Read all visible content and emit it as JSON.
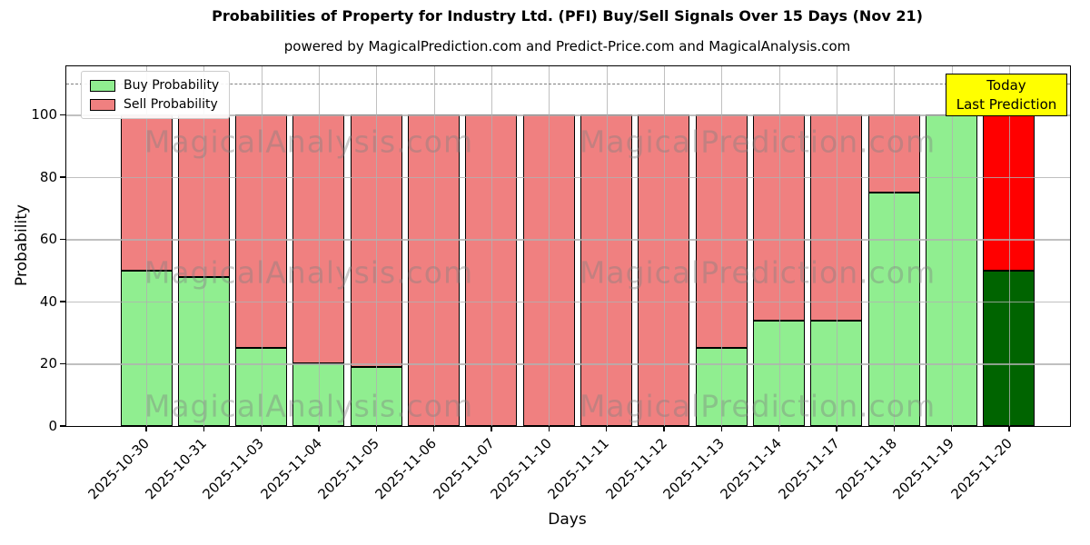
{
  "chart_data": {
    "type": "bar",
    "stacked": true,
    "title": "Probabilities of Property for Industry Ltd. (PFI) Buy/Sell Signals Over 15 Days (Nov 21)",
    "subtitle": "powered by MagicalPrediction.com and Predict-Price.com and MagicalAnalysis.com",
    "xlabel": "Days",
    "ylabel": "Probability",
    "ylim": [
      0,
      115.6
    ],
    "yticks": [
      0,
      20,
      40,
      60,
      80,
      100
    ],
    "grid": true,
    "legend_position": "upper left",
    "categories": [
      "2025-10-30",
      "2025-10-31",
      "2025-11-03",
      "2025-11-04",
      "2025-11-05",
      "2025-11-06",
      "2025-11-07",
      "2025-11-10",
      "2025-11-11",
      "2025-11-12",
      "2025-11-13",
      "2025-11-14",
      "2025-11-17",
      "2025-11-18",
      "2025-11-19",
      "2025-11-20"
    ],
    "series": [
      {
        "name": "Buy Probability",
        "color": "#90EE90",
        "values": [
          50,
          48,
          25,
          20,
          19,
          0,
          0,
          0,
          0,
          0,
          25,
          34,
          34,
          75,
          100,
          50
        ]
      },
      {
        "name": "Sell Probability",
        "color": "#F08080",
        "values": [
          50,
          52,
          75,
          80,
          81,
          100,
          100,
          100,
          100,
          100,
          75,
          66,
          66,
          25,
          0,
          50
        ]
      }
    ],
    "today_bar": {
      "category": "2025-11-20",
      "index": 15,
      "buy_color": "#006400",
      "sell_color": "#FF0000"
    },
    "reference_line": {
      "y": 110,
      "style": "dashed",
      "color": "#7f7f7f"
    },
    "annotation_box": {
      "line1": "Today",
      "line2": "Last Prediction",
      "bg_color": "#FFFF00",
      "border_color": "#000000"
    },
    "watermarks": {
      "left_text": "MagicalAnalysis.com",
      "right_text": "MagicalPrediction.com",
      "color": "#808080"
    }
  }
}
